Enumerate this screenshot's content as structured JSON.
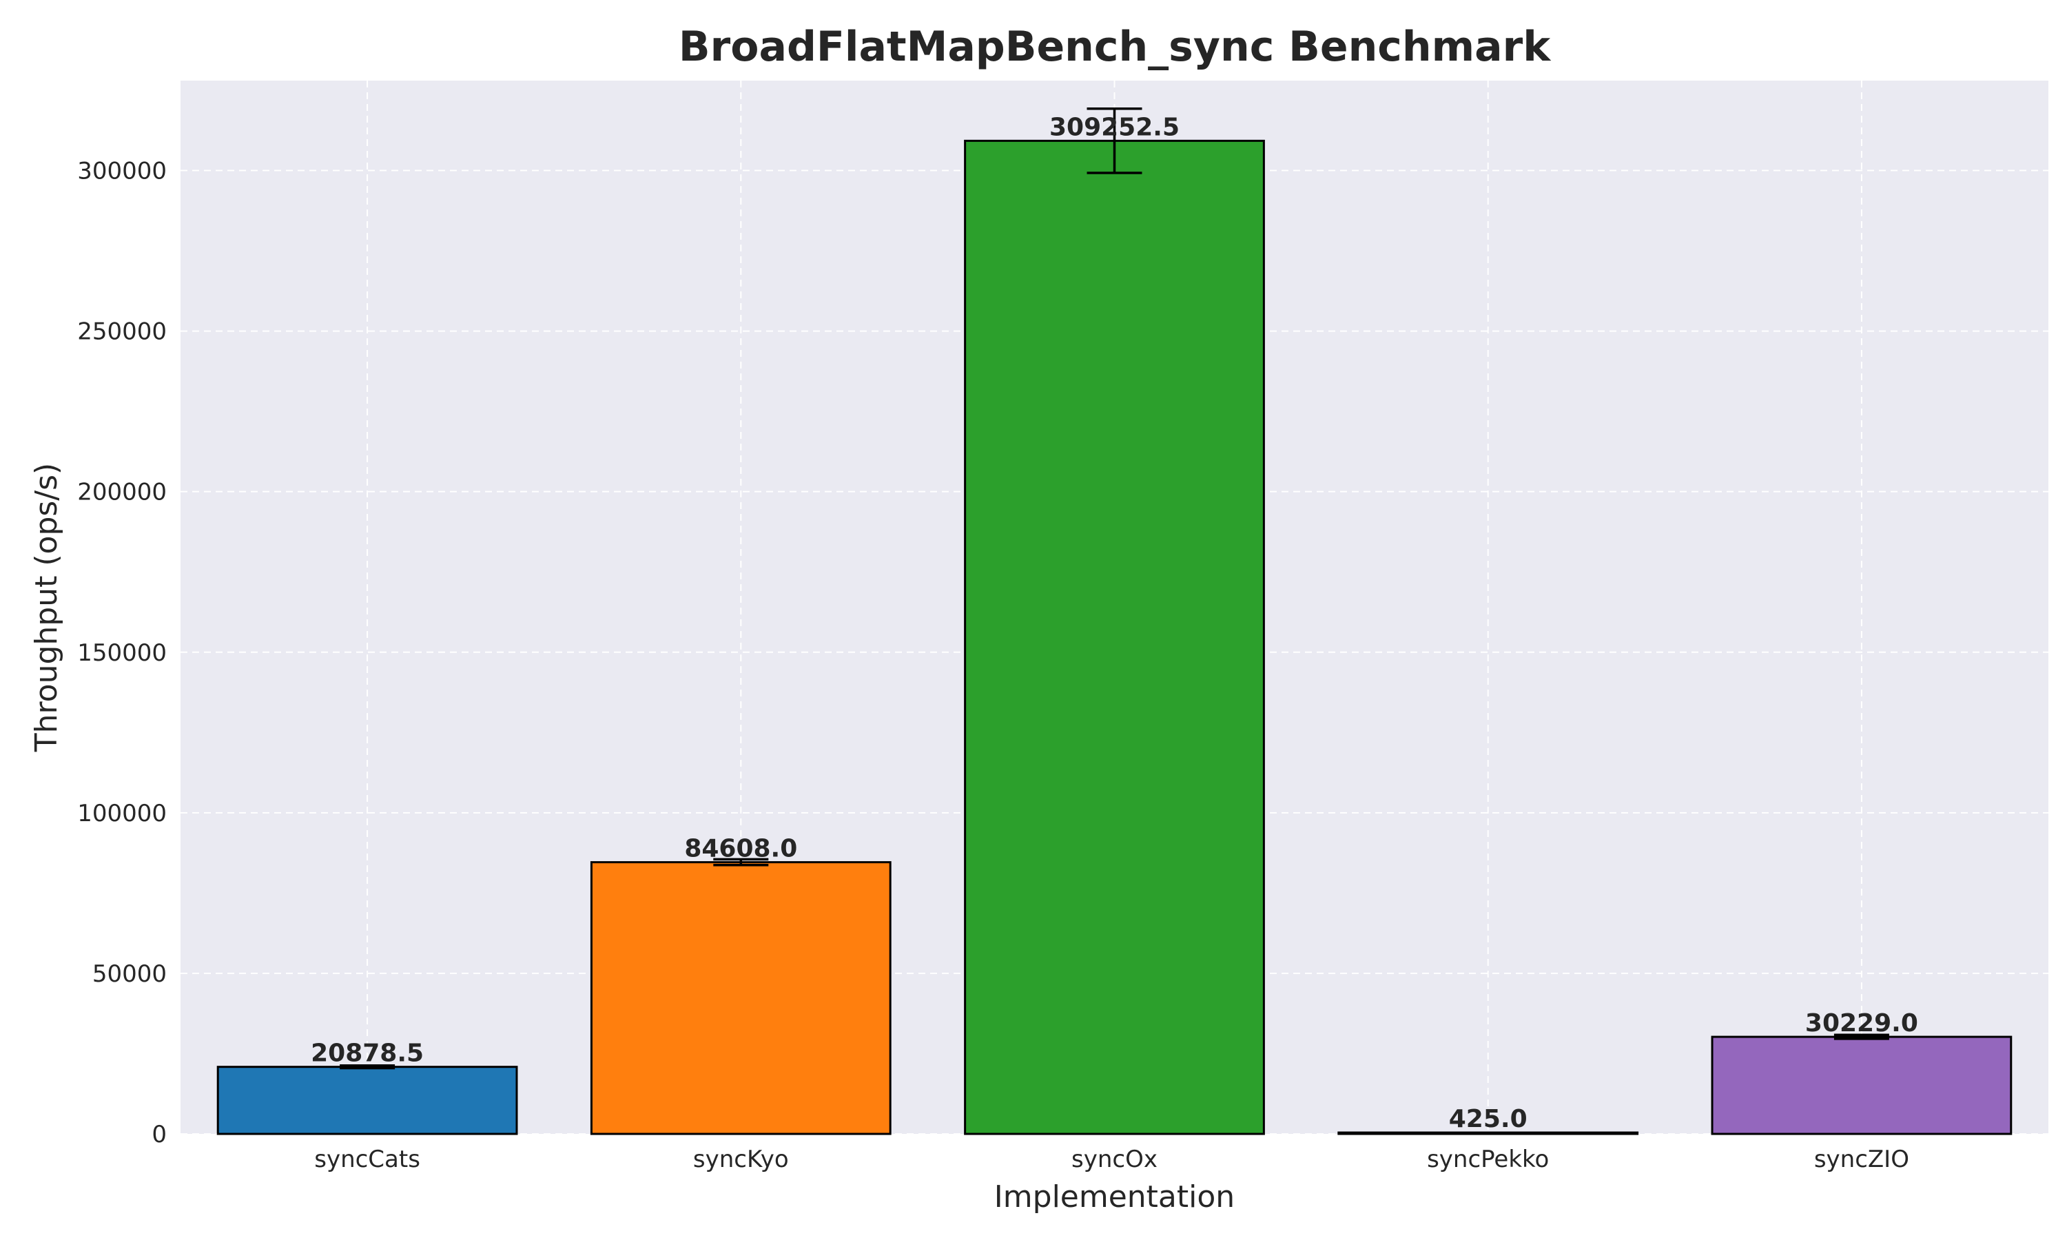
{
  "chart_data": {
    "type": "bar",
    "title": "BroadFlatMapBench_sync Benchmark",
    "xlabel": "Implementation",
    "ylabel": "Throughput (ops/s)",
    "categories": [
      "syncCats",
      "syncKyo",
      "syncOx",
      "syncPekko",
      "syncZIO"
    ],
    "values": [
      20878.5,
      84608.0,
      309252.5,
      425.0,
      30229.0
    ],
    "value_labels": [
      "20878.5",
      "84608.0",
      "309252.5",
      "425.0",
      "30229.0"
    ],
    "errors": [
      400,
      900,
      10000,
      0,
      600
    ],
    "colors": [
      "#1f77b4",
      "#ff7f0e",
      "#2ca02c",
      "#d62728",
      "#9467bd"
    ],
    "ylim": [
      0,
      328000
    ],
    "yticks": [
      0,
      50000,
      100000,
      150000,
      200000,
      250000,
      300000
    ],
    "ytick_labels": [
      "0",
      "50000",
      "100000",
      "150000",
      "200000",
      "250000",
      "300000"
    ],
    "grid": true,
    "background": "#eaeaf2"
  }
}
